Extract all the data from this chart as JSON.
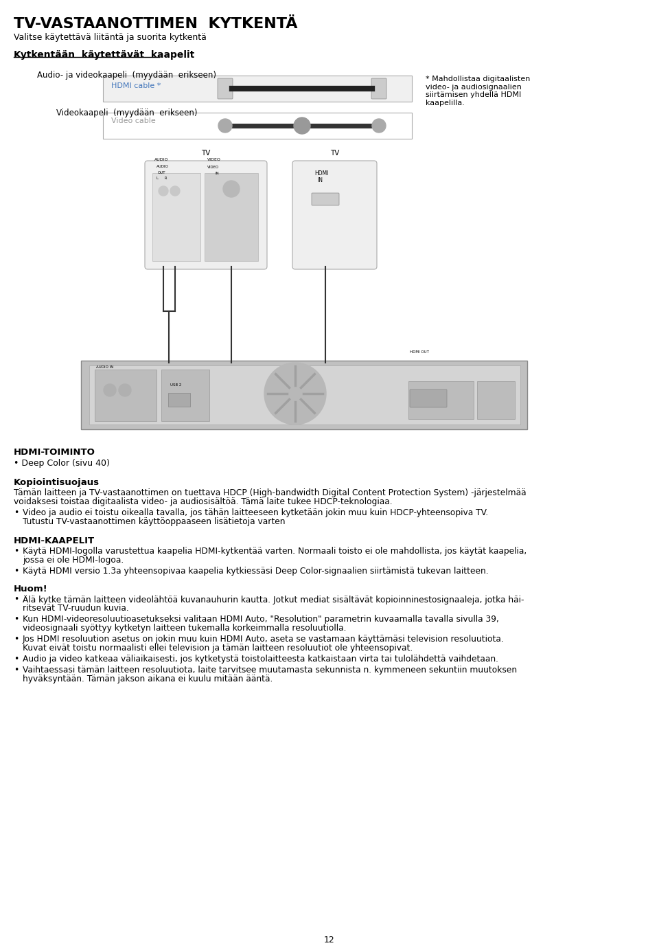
{
  "title": "TV-VASTAANOTTIMEN  KYTKENTÄ",
  "subtitle": "Valitse käytettävä liitäntä ja suorita kytkentä",
  "section1_heading": "Kytkentään  käytettävät  kaapelit",
  "cable1_label": "Audio- ja videokaapeli  (myydään  erikseen)",
  "cable1_name": "HDMI cable *",
  "cable2_label": "Videokaapeli  (myydään  erikseen)",
  "cable2_name": "Video cable",
  "footnote": "* Mahdollistaa digitaalisten\nvideo- ja audiosignaalien\nsiirtämisen yhdellä HDMI\nkaapelilla.",
  "section2_heading": "HDMI-TOIMINTO",
  "bullet1": "Deep Color (sivu 40)",
  "section3_heading": "Kopiointisuojaus",
  "para1_line1": "Tämän laitteen ja TV-vastaanottimen on tuettava HDCP (High-bandwidth Digital Content Protection System) -järjestelmää",
  "para1_line2": "voidaksesi toistaa digitaalista video- ja audiosisältöä. Tämä laite tukee HDCP-teknologiaa.",
  "bullet2_line1": "Video ja audio ei toistu oikealla tavalla, jos tähän laitteeseen kytketään jokin muu kuin HDCP-yhteensopiva TV.",
  "bullet2_line2": "Tutustu TV-vastaanottimen käyttöoppaaseen lisätietoja varten",
  "section4_heading": "HDMI-KAAPELIT",
  "bullet3_line1": "Käytä HDMI-logolla varustettua kaapelia HDMI-kytkentää varten. Normaali toisto ei ole mahdollista, jos käytät kaapelia,",
  "bullet3_line2": "jossa ei ole HDMI-logoa.",
  "bullet4": "Käytä HDMI versio 1.3a yhteensopivaa kaapelia kytkiessäsi Deep Color-signaalien siirtämistä tukevan laitteen.",
  "section5_heading": "Huom!",
  "bullet5_line1": "Älä kytke tämän laitteen videolähtöä kuvanauhurin kautta. Jotkut mediat sisältävät kopioinninestosignaaleja, jotka häi-",
  "bullet5_line2": "ritsevät TV-ruudun kuvia.",
  "bullet6_line1": "Kun HDMI-videoresoluutioasetukseksi valitaan HDMI Auto, \"Resolution\" parametrin kuvaamalla tavalla sivulla 39,",
  "bullet6_line2": "videosignaali syöttyy kytketyn laitteen tukemalla korkeimmalla resoluutiolla.",
  "bullet7_line1": "Jos HDMI resoluution asetus on jokin muu kuin HDMI Auto, aseta se vastamaan käyttämäsi television resoluutiota.",
  "bullet7_line2": "Kuvat eivät toistu normaalisti ellei television ja tämän laitteen resoluutiot ole yhteensopivat.",
  "bullet8": "Audio ja video katkeaa väliaikaisesti, jos kytketystä toistolaitteesta katkaistaan virta tai tulolähdettä vaihdetaan.",
  "bullet9_line1": "Vaihtaessasi tämän laitteen resoluutiota, laite tarvitsee muutamasta sekunnista n. kymmeneen sekuntiin muutoksen",
  "bullet9_line2": "hyväksyntään. Tämän jakson aikana ei kuulu mitään ääntä.",
  "page_number": "12",
  "bg_color": "#ffffff",
  "text_color": "#000000"
}
